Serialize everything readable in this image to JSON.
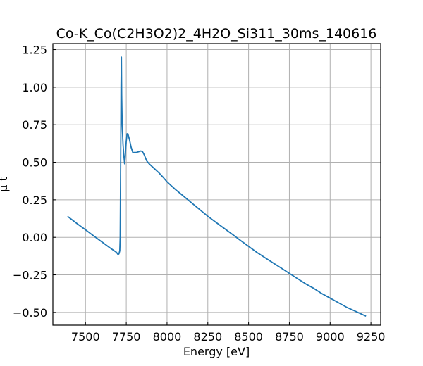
{
  "chart_data": {
    "type": "line",
    "title": "Co-K_Co(C2H3O2)2_4H2O_Si311_30ms_140616",
    "xlabel": "Energy [eV]",
    "ylabel": "μ t",
    "xlim": [
      7300,
      9310
    ],
    "ylim": [
      -0.585,
      1.29
    ],
    "grid": true,
    "x_ticks": [
      7500,
      7750,
      8000,
      8250,
      8500,
      8750,
      9000,
      9250
    ],
    "y_ticks": [
      -0.5,
      -0.25,
      0.0,
      0.25,
      0.5,
      0.75,
      1.0,
      1.25
    ],
    "x_tick_labels": [
      "7500",
      "7750",
      "8000",
      "8250",
      "8500",
      "8750",
      "9000",
      "9250"
    ],
    "y_tick_labels": [
      "−0.50",
      "−0.25",
      "0.00",
      "0.25",
      "0.50",
      "0.75",
      "1.00",
      "1.25"
    ],
    "series": [
      {
        "color": "#1f77b4",
        "x": [
          7390,
          7450,
          7500,
          7550,
          7600,
          7650,
          7690,
          7700,
          7705,
          7710,
          7713,
          7716,
          7718,
          7720,
          7722,
          7725,
          7730,
          7735,
          7740,
          7745,
          7750,
          7755,
          7760,
          7770,
          7780,
          7790,
          7800,
          7810,
          7825,
          7840,
          7850,
          7860,
          7875,
          7890,
          7910,
          7930,
          7950,
          7980,
          8000,
          8050,
          8100,
          8150,
          8200,
          8250,
          8300,
          8350,
          8400,
          8450,
          8500,
          8550,
          8600,
          8650,
          8700,
          8750,
          8800,
          8850,
          8900,
          8950,
          9000,
          9050,
          9100,
          9150,
          9200,
          9220
        ],
        "y": [
          0.14,
          0.09,
          0.05,
          0.01,
          -0.03,
          -0.07,
          -0.1,
          -0.115,
          -0.11,
          -0.09,
          0.0,
          0.5,
          1.0,
          1.2,
          0.95,
          0.75,
          0.62,
          0.55,
          0.49,
          0.56,
          0.64,
          0.69,
          0.69,
          0.65,
          0.6,
          0.565,
          0.565,
          0.565,
          0.57,
          0.575,
          0.57,
          0.55,
          0.51,
          0.49,
          0.47,
          0.45,
          0.43,
          0.395,
          0.37,
          0.32,
          0.275,
          0.23,
          0.185,
          0.14,
          0.1,
          0.06,
          0.02,
          -0.02,
          -0.06,
          -0.1,
          -0.135,
          -0.17,
          -0.205,
          -0.24,
          -0.275,
          -0.31,
          -0.34,
          -0.375,
          -0.405,
          -0.435,
          -0.465,
          -0.49,
          -0.515,
          -0.525
        ]
      }
    ]
  }
}
